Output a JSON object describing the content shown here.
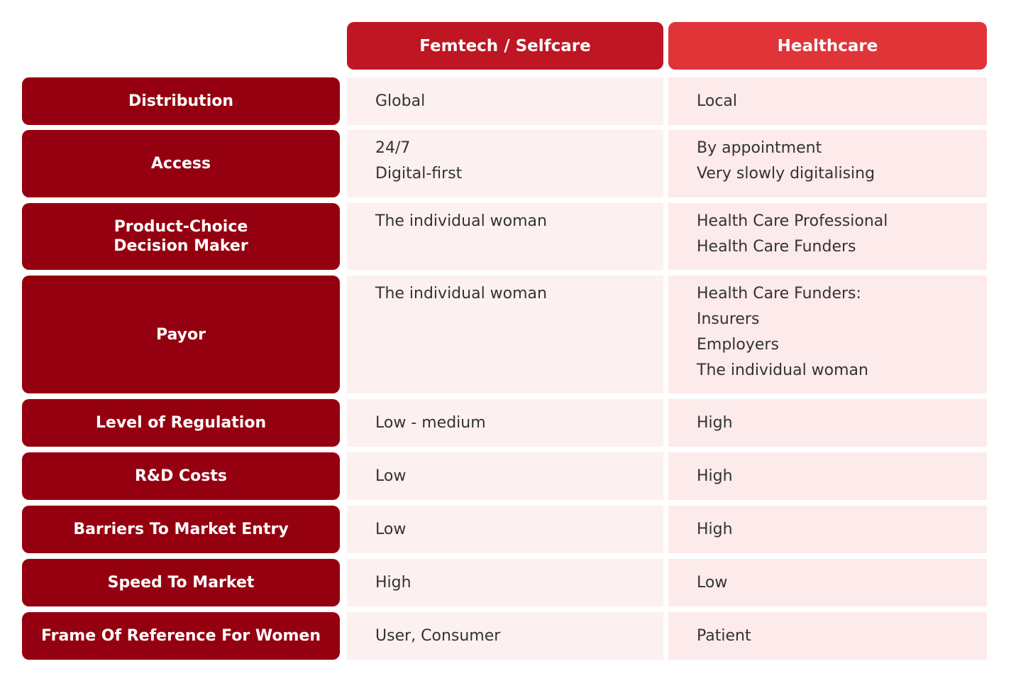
{
  "table": {
    "headers": [
      "Femtech / Selfcare",
      "Healthcare"
    ],
    "rows": [
      {
        "label": [
          "Distribution"
        ],
        "femtech": [
          "Global"
        ],
        "healthcare": [
          "Local"
        ]
      },
      {
        "label": [
          "Access"
        ],
        "femtech": [
          "24/7",
          "Digital-first"
        ],
        "healthcare": [
          "By appointment",
          "Very slowly digitalising"
        ]
      },
      {
        "label": [
          "Product-Choice",
          "Decision Maker"
        ],
        "femtech": [
          "The individual woman"
        ],
        "healthcare": [
          "Health Care Professional",
          "Health Care Funders"
        ]
      },
      {
        "label": [
          "Payor"
        ],
        "femtech": [
          "The individual woman"
        ],
        "healthcare": [
          "Health Care Funders:",
          "Insurers",
          "Employers",
          "The individual woman"
        ]
      },
      {
        "label": [
          "Level of Regulation"
        ],
        "femtech": [
          "Low - medium"
        ],
        "healthcare": [
          "High"
        ]
      },
      {
        "label": [
          "R&D Costs"
        ],
        "femtech": [
          "Low"
        ],
        "healthcare": [
          "High"
        ]
      },
      {
        "label": [
          "Barriers To Market Entry"
        ],
        "femtech": [
          "Low"
        ],
        "healthcare": [
          "High"
        ]
      },
      {
        "label": [
          "Speed To Market"
        ],
        "femtech": [
          "High"
        ],
        "healthcare": [
          "Low"
        ]
      },
      {
        "label": [
          "Frame Of Reference For Women"
        ],
        "femtech": [
          "User, Consumer"
        ],
        "healthcare": [
          "Patient"
        ]
      }
    ]
  }
}
